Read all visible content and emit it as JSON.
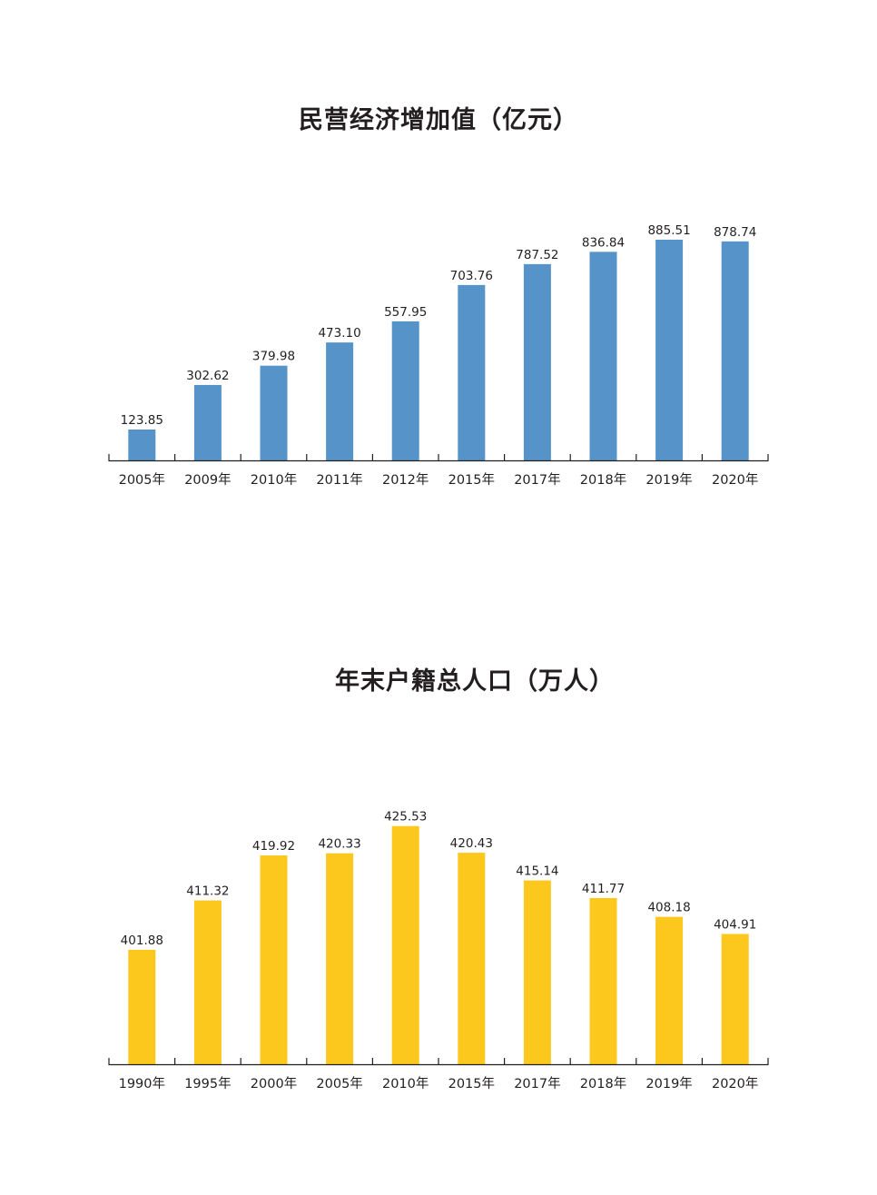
{
  "chart_data": [
    {
      "type": "bar",
      "title": "民营经济增加值（亿元）",
      "categories": [
        "2005年",
        "2009年",
        "2010年",
        "2011年",
        "2012年",
        "2015年",
        "2017年",
        "2018年",
        "2019年",
        "2020年"
      ],
      "values": [
        123.85,
        302.62,
        379.98,
        473.1,
        557.95,
        703.76,
        787.52,
        836.84,
        885.51,
        878.74
      ],
      "value_labels": [
        "123.85",
        "302.62",
        "379.98",
        "473.10",
        "557.95",
        "703.76",
        "787.52",
        "836.84",
        "885.51",
        "878.74"
      ],
      "xlabel": "",
      "ylabel": "",
      "ylim": [
        0,
        900
      ],
      "grid": false,
      "legend": "none",
      "color": "#5593c8"
    },
    {
      "type": "bar",
      "title": "年末户籍总人口（万人）",
      "categories": [
        "1990年",
        "1995年",
        "2000年",
        "2005年",
        "2010年",
        "2015年",
        "2017年",
        "2018年",
        "2019年",
        "2020年"
      ],
      "values": [
        401.88,
        411.32,
        419.92,
        420.33,
        425.53,
        420.43,
        415.14,
        411.77,
        408.18,
        404.91
      ],
      "value_labels": [
        "401.88",
        "411.32",
        "419.92",
        "420.33",
        "425.53",
        "420.43",
        "415.14",
        "411.77",
        "408.18",
        "404.91"
      ],
      "xlabel": "",
      "ylabel": "",
      "ylim": [
        380,
        426
      ],
      "grid": false,
      "legend": "none",
      "color": "#fcc81d"
    }
  ]
}
